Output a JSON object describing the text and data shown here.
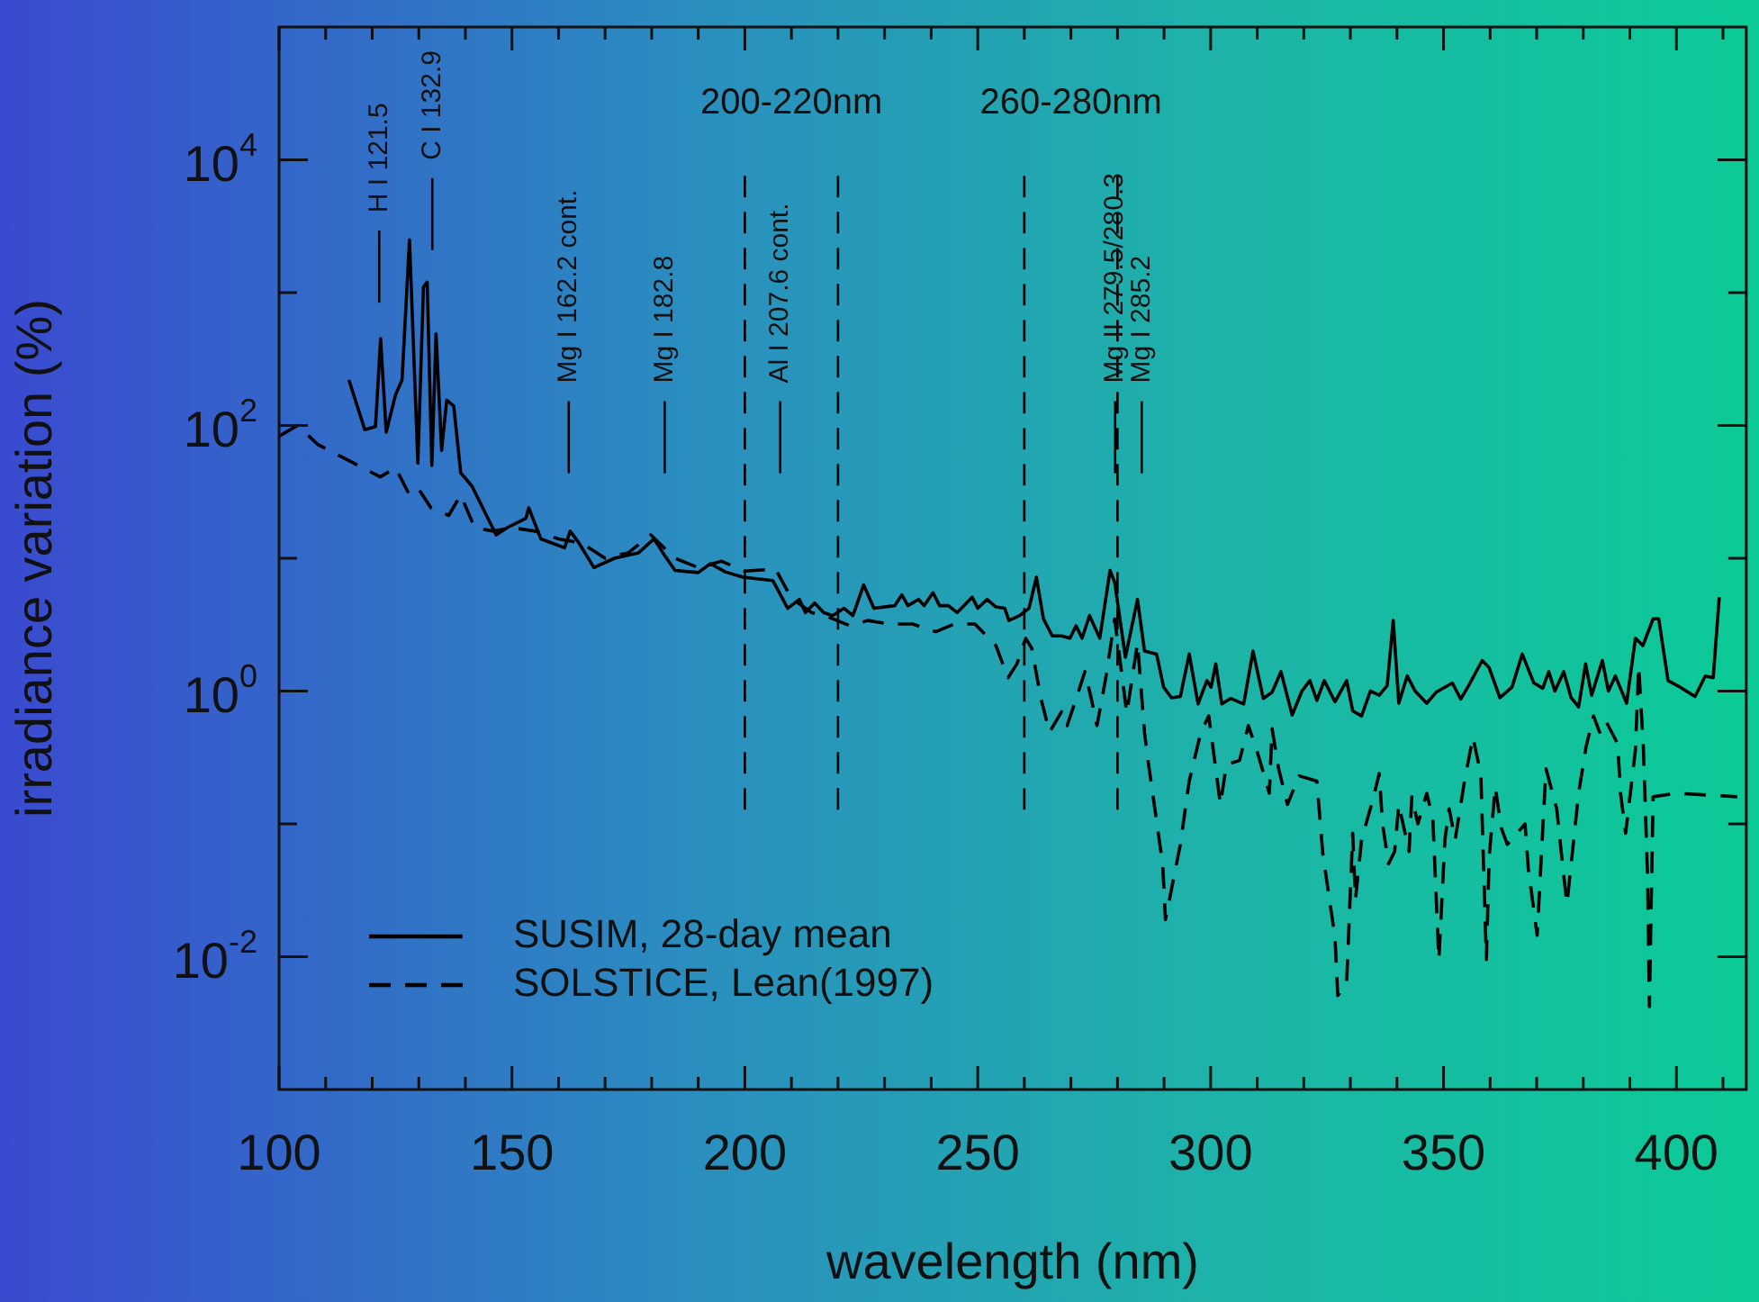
{
  "chart_data": {
    "type": "line",
    "xlabel": "wavelength (nm)",
    "ylabel": "irradiance variation (%)",
    "log": "y",
    "grid": false,
    "marker": "none",
    "legend": "bottom left",
    "xlim": [
      100,
      415
    ],
    "ylim": [
      0.001,
      100000
    ],
    "xticks": [
      100,
      {
        "value": 110,
        "label": null
      },
      {
        "value": 120,
        "label": null
      },
      {
        "value": 130,
        "label": null
      },
      {
        "value": 140,
        "label": null
      },
      150,
      {
        "value": 160,
        "label": null
      },
      {
        "value": 170,
        "label": null
      },
      {
        "value": 180,
        "label": null
      },
      {
        "value": 190,
        "label": null
      },
      200,
      {
        "value": 210,
        "label": null
      },
      {
        "value": 220,
        "label": null
      },
      {
        "value": 230,
        "label": null
      },
      {
        "value": 240,
        "label": null
      },
      250,
      {
        "value": 260,
        "label": null
      },
      {
        "value": 270,
        "label": null
      },
      {
        "value": 280,
        "label": null
      },
      {
        "value": 290,
        "label": null
      },
      300,
      {
        "value": 310,
        "label": null
      },
      {
        "value": 320,
        "label": null
      },
      {
        "value": 330,
        "label": null
      },
      {
        "value": 340,
        "label": null
      },
      350,
      {
        "value": 360,
        "label": null
      },
      {
        "value": 370,
        "label": null
      },
      {
        "value": 380,
        "label": null
      },
      {
        "value": 390,
        "label": null
      },
      400,
      {
        "value": 410,
        "label": null
      }
    ],
    "yticks": [
      {
        "value": 0.01,
        "label": "10$^{-2}$"
      },
      {
        "value": 0.1,
        "label": null
      },
      {
        "value": 1,
        "label": "10$^{0}$"
      },
      {
        "value": 10,
        "label": null
      },
      {
        "value": 100,
        "label": "10$^{2}$"
      },
      {
        "value": 1000,
        "label": null
      },
      {
        "value": 10000,
        "label": "10$^{4}$"
      }
    ],
    "series": [
      {
        "name": "SUSIM, 28-day mean",
        "color": "#000000",
        "line_style": "solid",
        "x": [
          115,
          118.4,
          120.7,
          121.8,
          123,
          125,
          126.4,
          128,
          129.8,
          131,
          131.8,
          132.8,
          133.7,
          134.9,
          136,
          137.5,
          139,
          141.4,
          146.6,
          149,
          153,
          153.6,
          156.2,
          161.3,
          162.5,
          164.4,
          167.6,
          172,
          177.2,
          180.5,
          182.4,
          185,
          190,
          192.6,
          195.8,
          199.6,
          206,
          209.2,
          211.7,
          213,
          215,
          216.9,
          218.8,
          221.3,
          223.2,
          225.5,
          227.7,
          232.2,
          233.7,
          235,
          237.3,
          238.5,
          240.4,
          241.8,
          243.7,
          245.6,
          248.8,
          250,
          252,
          253.9,
          255.8,
          256.7,
          259,
          261,
          262.6,
          264.1,
          266,
          268,
          269.8,
          271.1,
          272.4,
          274,
          276.2,
          278.4,
          279.4,
          281.7,
          284.3,
          285.8,
          288.4,
          289.9,
          291.6,
          293.5,
          295.4,
          297.3,
          299.2,
          300.1,
          301.1,
          302.4,
          304.3,
          307.1,
          309.1,
          311.3,
          313.2,
          315.1,
          317.5,
          319.6,
          321.3,
          322.8,
          324.4,
          326.7,
          329.2,
          330.5,
          332.4,
          334.3,
          336.2,
          337.9,
          339.2,
          340.4,
          342.2,
          343.9,
          346.4,
          348.4,
          351.9,
          353.7,
          355.4,
          358.3,
          359.8,
          362.1,
          364.7,
          366.9,
          369.4,
          371.3,
          372.6,
          373.9,
          375.8,
          377.4,
          379,
          380.5,
          381.8,
          384.1,
          385.4,
          386.9,
          389.3,
          391.2,
          392.8,
          395,
          396.2,
          398.2,
          400.8,
          404,
          406.2,
          407.9,
          409.2
        ],
        "values": [
          220,
          93,
          98,
          450,
          89,
          170,
          220,
          2500,
          52,
          1100,
          1200,
          50,
          490,
          65,
          155,
          140,
          44,
          35,
          15,
          17,
          20,
          24,
          14,
          12,
          16,
          13,
          8.5,
          10,
          11,
          14,
          11,
          8.1,
          7.8,
          9.1,
          7.9,
          7.2,
          6.8,
          4.2,
          4.9,
          3.9,
          4.6,
          3.9,
          3.7,
          4.2,
          3.7,
          6.3,
          4.2,
          4.4,
          5.3,
          4.4,
          4.9,
          4.4,
          5.5,
          4.4,
          4.4,
          3.9,
          5.1,
          4.2,
          4.9,
          4.3,
          4.2,
          3.4,
          3.7,
          4.2,
          7.2,
          3.5,
          2.6,
          2.6,
          2.5,
          3.1,
          2.5,
          3.7,
          2.5,
          8.1,
          6.6,
          1.8,
          4.9,
          2.0,
          1.9,
          1.07,
          0.89,
          0.91,
          1.9,
          0.8,
          1.2,
          1.07,
          1.6,
          0.8,
          0.88,
          0.8,
          2.0,
          0.88,
          0.98,
          1.4,
          0.66,
          1.0,
          1.2,
          0.85,
          1.2,
          0.83,
          1.2,
          0.71,
          0.65,
          1.0,
          0.93,
          1.1,
          3.4,
          0.81,
          1.3,
          1.0,
          0.81,
          0.98,
          1.15,
          0.87,
          1.1,
          1.7,
          1.5,
          0.89,
          1.07,
          1.9,
          1.15,
          1.05,
          1.4,
          1.0,
          1.4,
          0.89,
          0.76,
          1.6,
          0.93,
          1.7,
          1.0,
          1.3,
          0.81,
          2.5,
          2.2,
          3.5,
          3.5,
          1.2,
          1.07,
          0.91,
          1.3,
          1.26,
          5.1
        ]
      },
      {
        "name": "SOLSTICE, Lean(1997)",
        "color": "#000000",
        "line_style": "dashed",
        "x": [
          100,
          104,
          108.3,
          117,
          121.7,
          125,
          128,
          130,
          132.6,
          136.4,
          139,
          142,
          146,
          150,
          155,
          160,
          165,
          170,
          175,
          179.8,
          185,
          190,
          195,
          200,
          206.6,
          210,
          214.3,
          218,
          222.6,
          226.4,
          230.9,
          236,
          241,
          245,
          249.4,
          253.9,
          256.5,
          258.4,
          260.3,
          261.6,
          263.5,
          265.4,
          268,
          269.2,
          271.1,
          273,
          274.3,
          275.6,
          277.5,
          279.4,
          282,
          284.3,
          285.8,
          286.5,
          289.7,
          290.3,
          293.5,
          295.4,
          297.9,
          299.6,
          302.1,
          303.4,
          306.2,
          308.1,
          310,
          312.6,
          313.2,
          314.6,
          316.5,
          319,
          322.8,
          324.1,
          326.7,
          327.3,
          329.2,
          330.5,
          331.1,
          332.4,
          335,
          336.2,
          336.9,
          338.2,
          339.5,
          340.4,
          342.6,
          343.2,
          344.5,
          346.4,
          347.7,
          349,
          350.3,
          351.2,
          352.5,
          354.5,
          356.3,
          358,
          359.2,
          359.8,
          361.1,
          362.4,
          363.7,
          367.5,
          368.2,
          370.1,
          372,
          374.3,
          375.8,
          376.5,
          379,
          380.6,
          382.2,
          383.5,
          384.8,
          387.4,
          388,
          389.1,
          391.2,
          391.9,
          392.9,
          393.8,
          394.2,
          395,
          399.8,
          413.1
        ],
        "values": [
          83,
          100,
          72,
          50,
          41,
          48,
          30,
          33,
          24,
          21,
          30,
          17,
          16,
          17,
          16,
          14,
          13,
          10,
          11,
          15,
          10,
          8.5,
          9.5,
          8,
          8.3,
          5,
          3.9,
          3.6,
          3.1,
          3.4,
          3.2,
          3.2,
          2.8,
          3.2,
          3.2,
          2.2,
          1.26,
          1.6,
          2.5,
          2.1,
          0.9,
          0.49,
          0.7,
          0.55,
          0.87,
          1.4,
          0.9,
          0.55,
          1.26,
          3.5,
          0.68,
          2.3,
          0.49,
          0.31,
          0.05,
          0.019,
          0.07,
          0.21,
          0.49,
          0.65,
          0.14,
          0.28,
          0.3,
          0.55,
          0.35,
          0.17,
          0.52,
          0.26,
          0.14,
          0.23,
          0.21,
          0.059,
          0.014,
          0.0051,
          0.0063,
          0.085,
          0.027,
          0.076,
          0.16,
          0.24,
          0.1,
          0.05,
          0.062,
          0.14,
          0.062,
          0.16,
          0.1,
          0.17,
          0.11,
          0.0095,
          0.076,
          0.13,
          0.076,
          0.21,
          0.45,
          0.24,
          0.0095,
          0.056,
          0.19,
          0.093,
          0.07,
          0.1,
          0.046,
          0.0145,
          0.26,
          0.13,
          0.041,
          0.025,
          0.17,
          0.38,
          0.65,
          0.49,
          0.6,
          0.4,
          0.17,
          0.085,
          0.36,
          1.55,
          0.38,
          0.041,
          0.0042,
          0.16,
          0.17,
          0.16
        ]
      }
    ],
    "ref_lines": [
      {
        "axis": "x",
        "value": 200,
        "label": "200-220nm",
        "color": "#000000",
        "line_style": "dashed"
      },
      {
        "axis": "x",
        "value": 220,
        "label": null,
        "color": "#000000",
        "line_style": "dashed"
      },
      {
        "axis": "x",
        "value": 260,
        "label": "260-280nm",
        "color": "#000000",
        "line_style": "dashed"
      },
      {
        "axis": "x",
        "value": 280,
        "label": null,
        "color": "#000000",
        "line_style": "dashed"
      },
      {
        "axis": "x",
        "value": 121.5,
        "label": "H I 121.5",
        "color": "#000000",
        "line_style": "solid"
      },
      {
        "axis": "x",
        "value": 132.9,
        "label": "C I 132.9",
        "color": "#000000",
        "line_style": "solid"
      },
      {
        "axis": "x",
        "value": 162.2,
        "label": "Mg I 162.2 cont.",
        "color": "#000000",
        "line_style": "solid"
      },
      {
        "axis": "x",
        "value": 182.8,
        "label": "Mg I 182.8",
        "color": "#000000",
        "line_style": "solid"
      },
      {
        "axis": "x",
        "value": 207.6,
        "label": "Al I 207.6 cont.",
        "color": "#000000",
        "line_style": "solid"
      },
      {
        "axis": "x",
        "value": 279.5,
        "label": "Mg II 279.5/280.3",
        "color": "#000000",
        "line_style": "solid"
      },
      {
        "axis": "x",
        "value": 285.2,
        "label": "Mg I 285.2",
        "color": "#000000",
        "line_style": "solid"
      }
    ]
  }
}
